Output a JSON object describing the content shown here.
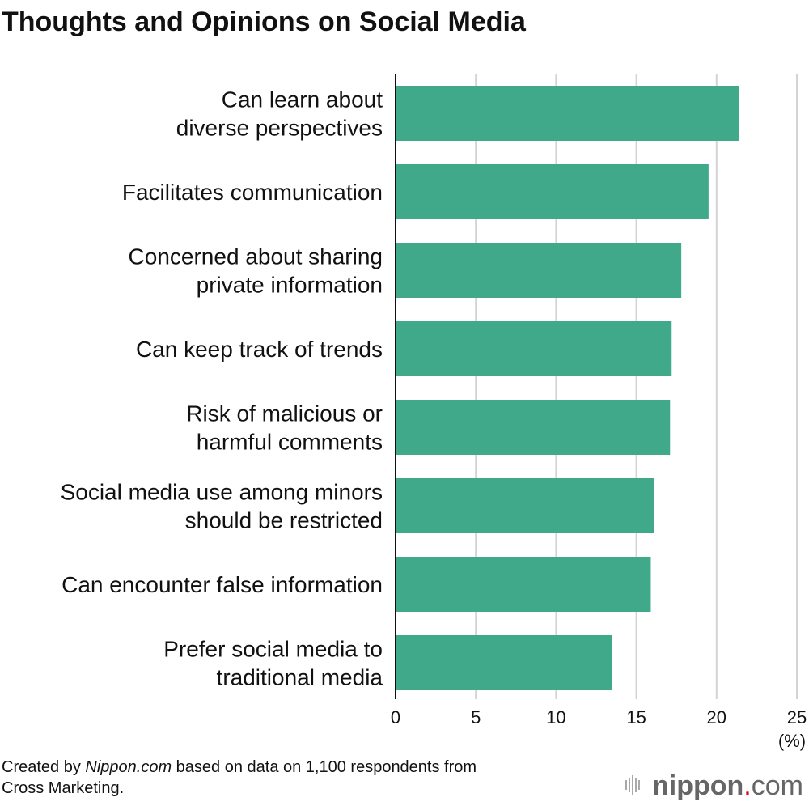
{
  "chart_data": {
    "type": "bar",
    "orientation": "horizontal",
    "title": "Thoughts and Opinions on Social Media",
    "categories": [
      [
        "Can learn about",
        "diverse perspectives"
      ],
      [
        "Facilitates communication"
      ],
      [
        "Concerned about sharing",
        "private information"
      ],
      [
        "Can keep track of trends"
      ],
      [
        "Risk of malicious or",
        "harmful comments"
      ],
      [
        "Social media use among minors",
        "should be restricted"
      ],
      [
        "Can encounter false information"
      ],
      [
        "Prefer social media to",
        "traditional media"
      ]
    ],
    "values": [
      21.4,
      19.5,
      17.8,
      17.2,
      17.1,
      16.1,
      15.9,
      13.5
    ],
    "xlim": [
      0,
      25
    ],
    "xticks": [
      0,
      5,
      10,
      15,
      20,
      25
    ],
    "xunit": "(%)",
    "grid": true,
    "bar_color": "#3fa98a",
    "grid_color": "#d3d3d3"
  },
  "footer": {
    "prefix": "Created by ",
    "source_italic": "Nippon.com",
    "suffix": " based on data on 1,100 respondents from",
    "line2": "Cross Marketing."
  },
  "logo": {
    "text": "nippon",
    "dot": ".",
    "tld": "com",
    "dot_color": "#e60012"
  }
}
